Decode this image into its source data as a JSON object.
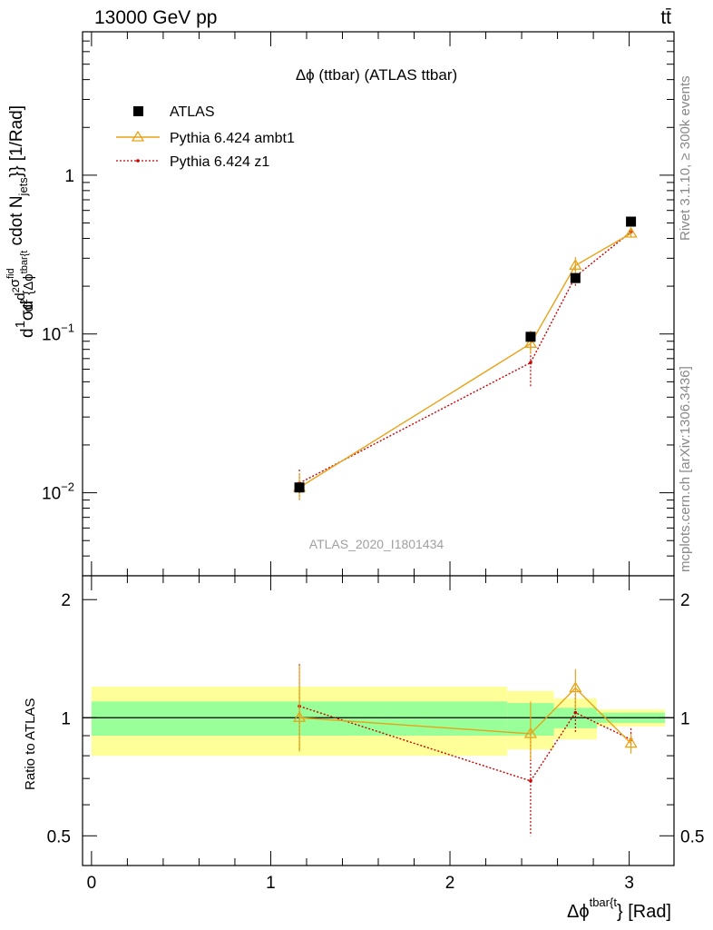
{
  "header": {
    "left": "13000 GeV pp",
    "right": "tt̄"
  },
  "side_labels": {
    "rivet": "Rivet 3.1.10, ≥ 300k events",
    "mcplots": "mcplots.cern.ch [arXiv:1306.3436]"
  },
  "chart_data": [
    {
      "type": "scatter",
      "panel": "main",
      "title": "Δϕ (ttbar) (ATLAS ttbar)",
      "watermark": "ATLAS_2020_I1801434",
      "ylabel_parts": {
        "d1": "d",
        "one": "1",
        "sigma": "σ",
        "d2": "d",
        "d2sig": "d",
        "sup2": "2",
        "sigma2": "σ",
        "fid": "fid",
        "ddenom": "d",
        "sup2b": "2",
        "brace": " {Δϕ",
        "tbar": "tbar{t",
        "cdot": " cdot N",
        "jets": "jets",
        "tail": "}} [1/Rad]"
      },
      "yscale": "log",
      "ylim": [
        0.003,
        8
      ],
      "xlim": [
        -0.05,
        3.25
      ],
      "ytick_labels": [
        {
          "value": 0.01,
          "base": "10",
          "exp": "−2"
        },
        {
          "value": 0.1,
          "base": "10",
          "exp": "−1"
        },
        {
          "value": 1,
          "base": "1",
          "exp": ""
        }
      ],
      "legend_position": "top-left",
      "series": [
        {
          "name": "ATLAS",
          "color": "#000000",
          "marker": "square",
          "x": [
            1.16,
            2.45,
            2.7,
            3.01
          ],
          "y": [
            0.0108,
            0.096,
            0.225,
            0.51
          ],
          "yerr_low": [
            0.0008,
            0.006,
            0.012,
            0.015
          ],
          "yerr_high": [
            0.0008,
            0.006,
            0.012,
            0.015
          ]
        },
        {
          "name": "Pythia 6.424 ambt1",
          "color": "#e8a317",
          "marker": "triangle",
          "line": "solid",
          "x": [
            1.16,
            2.45,
            2.7,
            3.01
          ],
          "y": [
            0.0108,
            0.087,
            0.27,
            0.43
          ],
          "yerr_low": [
            0.0018,
            0.012,
            0.03,
            0.02
          ],
          "yerr_high": [
            0.0025,
            0.018,
            0.035,
            0.025
          ]
        },
        {
          "name": "Pythia 6.424 z1",
          "color": "#cc0000",
          "marker": "dot",
          "line": "dotted",
          "x": [
            1.16,
            2.45,
            2.7,
            3.01
          ],
          "y": [
            0.0115,
            0.066,
            0.23,
            0.44
          ],
          "yerr_low": [
            0.0025,
            0.02,
            0.03,
            0.02
          ],
          "yerr_high": [
            0.0025,
            0.02,
            0.025,
            0.02
          ]
        }
      ]
    },
    {
      "type": "scatter",
      "panel": "ratio",
      "ylabel": "Ratio to ATLAS",
      "xlabel_parts": {
        "main": "Δϕ",
        "sup": "tbar{t",
        "tail": "} [Rad]"
      },
      "ylim": [
        0.42,
        2.3
      ],
      "xlim": [
        -0.05,
        3.25
      ],
      "xtick_labels": [
        "0",
        "1",
        "2",
        "3"
      ],
      "ytick_labels": [
        "0.5",
        "1",
        "2"
      ],
      "bands": [
        {
          "x0": 0.0,
          "x1": 2.32,
          "inner": [
            0.9,
            1.1
          ],
          "outer": [
            0.8,
            1.2
          ]
        },
        {
          "x0": 2.32,
          "x1": 2.58,
          "inner": [
            0.9,
            1.09
          ],
          "outer": [
            0.83,
            1.17
          ]
        },
        {
          "x0": 2.58,
          "x1": 2.82,
          "inner": [
            0.94,
            1.06
          ],
          "outer": [
            0.88,
            1.12
          ]
        },
        {
          "x0": 2.82,
          "x1": 3.2,
          "inner": [
            0.97,
            1.03
          ],
          "outer": [
            0.95,
            1.05
          ]
        }
      ],
      "series": [
        {
          "name": "Pythia 6.424 ambt1",
          "color": "#e8a317",
          "line": "solid",
          "x": [
            1.16,
            2.45,
            2.7,
            3.01
          ],
          "y": [
            1.0,
            0.91,
            1.19,
            0.86
          ],
          "yerr_low": [
            0.18,
            0.13,
            0.14,
            0.05
          ],
          "yerr_high": [
            0.36,
            0.19,
            0.14,
            0.05
          ]
        },
        {
          "name": "Pythia 6.424 z1",
          "color": "#cc0000",
          "line": "dotted",
          "x": [
            1.16,
            2.45,
            2.7,
            3.01
          ],
          "y": [
            1.07,
            0.69,
            1.03,
            0.88
          ],
          "yerr_low": [
            0.24,
            0.19,
            0.11,
            0.05
          ],
          "yerr_high": [
            0.3,
            0.22,
            0.12,
            0.06
          ]
        }
      ]
    }
  ]
}
